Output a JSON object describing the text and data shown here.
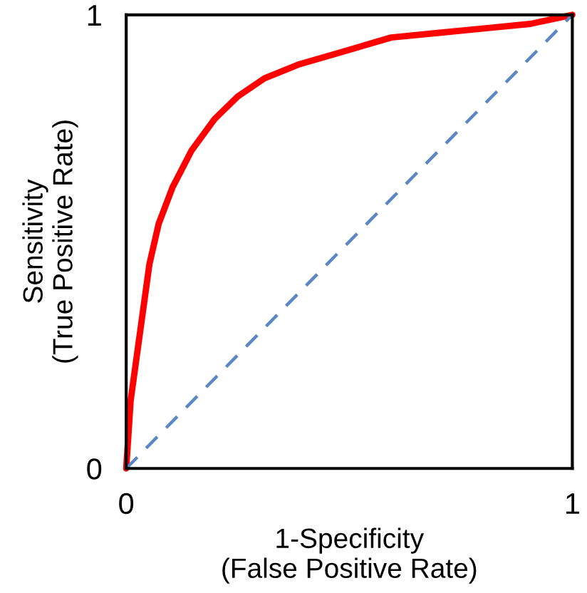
{
  "chart_data": {
    "type": "line",
    "xlabel": "1-Specificity\n(False Positive Rate)",
    "ylabel": "Sensitivity\n(True Positive Rate)",
    "xlim": [
      0,
      1
    ],
    "ylim": [
      0,
      1
    ],
    "xticks": [
      0,
      1
    ],
    "yticks": [
      0,
      1
    ],
    "legend": false,
    "series": [
      {
        "color": "#ff0000",
        "line_style": "solid",
        "x": [
          0,
          0.01,
          0.031,
          0.052,
          0.073,
          0.104,
          0.146,
          0.198,
          0.25,
          0.31,
          0.385,
          0.49,
          0.594,
          0.698,
          0.802,
          0.906,
          1
        ],
        "values": [
          0,
          0.15,
          0.3,
          0.45,
          0.54,
          0.62,
          0.7,
          0.77,
          0.82,
          0.86,
          0.89,
          0.92,
          0.95,
          0.96,
          0.97,
          0.98,
          1
        ]
      },
      {
        "color": "#5b87c5",
        "line_style": "dashed",
        "x": [
          0,
          1
        ],
        "values": [
          0,
          1
        ]
      }
    ]
  }
}
